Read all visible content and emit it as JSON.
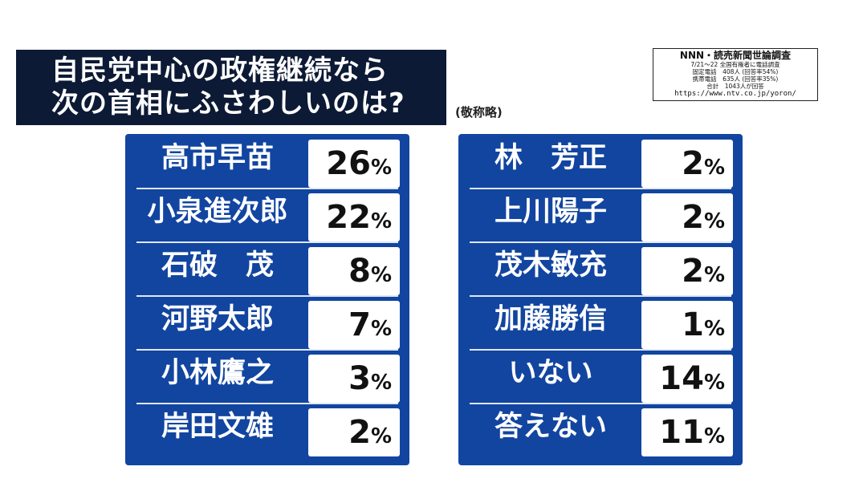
{
  "title": {
    "line1": "自民党中心の政権継続なら",
    "line2": "次の首相にふさわしいのは?"
  },
  "honorific_note": "(敬称略)",
  "source": {
    "title": "NNN・読売新聞世論調査",
    "line1": "7/21〜22 全国有権者に電話調査",
    "line2": "固定電話　408人 (回答率54%)",
    "line3": "携帯電話　635人 (回答率35%)",
    "line4": "合計　1043人が回答",
    "url": "https://www.ntv.co.jp/yoron/"
  },
  "chart_data": {
    "type": "table",
    "percent_sign": "%",
    "columns": [
      [
        {
          "label": "高市早苗",
          "value": 26
        },
        {
          "label": "小泉進次郎",
          "value": 22
        },
        {
          "label": "石破　茂",
          "value": 8
        },
        {
          "label": "河野太郎",
          "value": 7
        },
        {
          "label": "小林鷹之",
          "value": 3
        },
        {
          "label": "岸田文雄",
          "value": 2
        }
      ],
      [
        {
          "label": "林　芳正",
          "value": 2
        },
        {
          "label": "上川陽子",
          "value": 2
        },
        {
          "label": "茂木敏充",
          "value": 2
        },
        {
          "label": "加藤勝信",
          "value": 1
        },
        {
          "label": "いない",
          "value": 14
        },
        {
          "label": "答えない",
          "value": 11
        }
      ]
    ]
  },
  "colors": {
    "title_bg": "#0c1a35",
    "panel_bg": "#1245a0",
    "value_box_bg": "#ffffff"
  }
}
